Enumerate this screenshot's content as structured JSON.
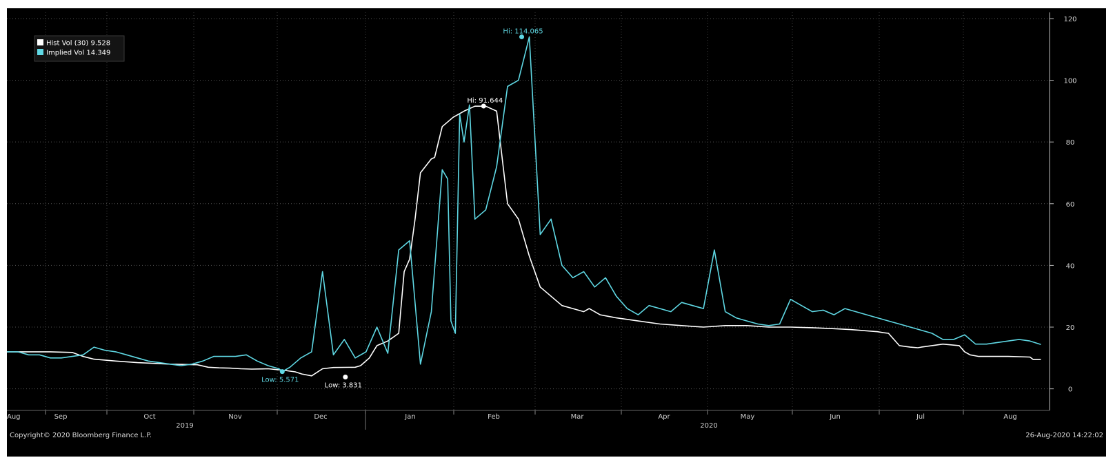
{
  "chart_data": {
    "type": "line",
    "ylim": [
      -7,
      122
    ],
    "yticks": [
      0,
      20,
      40,
      60,
      80,
      100,
      120
    ],
    "months": [
      "Aug",
      "Sep",
      "Oct",
      "Nov",
      "Dec",
      "Jan",
      "Feb",
      "Mar",
      "Apr",
      "May",
      "Jun",
      "Jul",
      "Aug"
    ],
    "years": [
      "2019",
      "2020"
    ],
    "legend": [
      {
        "label": "Hist Vol (30) 9.528",
        "color": "#ffffff"
      },
      {
        "label": "Implied Vol   14.349",
        "color": "#5fd8e4"
      }
    ],
    "series": [
      {
        "name": "Hist Vol (30)",
        "color": "#ffffff",
        "x": [
          0,
          20,
          40,
          60,
          70,
          80,
          100,
          120,
          150,
          175,
          185,
          195,
          205,
          215,
          225,
          240,
          255,
          265,
          271,
          280,
          290,
          300,
          320,
          325,
          333,
          340,
          350,
          356,
          360,
          365,
          370,
          375,
          380,
          390,
          393,
          400,
          410,
          420,
          430,
          440,
          450,
          460,
          470,
          480,
          490,
          500,
          510,
          520,
          530
        ],
        "y": [
          12,
          12,
          12,
          11.8,
          10.5,
          9.6,
          9,
          8.5,
          8,
          7.8,
          7,
          6.8,
          6.7,
          6.5,
          6.4,
          6.5,
          6,
          5.5,
          4.8,
          4.2,
          6.5,
          6.9,
          7,
          7.5,
          10,
          14,
          15.5,
          17,
          18,
          38,
          42,
          55,
          70,
          74.5,
          75,
          85,
          88,
          90,
          91.6,
          91.6,
          90,
          60,
          55,
          43,
          33,
          30,
          27,
          26,
          25
        ],
        "x2": [
          535,
          540,
          545,
          560,
          580,
          600,
          620,
          640,
          660,
          680,
          700,
          720,
          740,
          760,
          775,
          790,
          800,
          805,
          810,
          820,
          830,
          837,
          840,
          850,
          860,
          875,
          880,
          885,
          893,
          900,
          910,
          920,
          930,
          940,
          943,
          950
        ],
        "y2": [
          26,
          25,
          24,
          23,
          22,
          21,
          20.5,
          20,
          20.5,
          20.5,
          20,
          20,
          19.8,
          19.5,
          19.2,
          18.8,
          18.5,
          18.2,
          18,
          14,
          13.5,
          13.3,
          13.5,
          14,
          14.5,
          14,
          12,
          11,
          10.5,
          10.5,
          10.5,
          10.5,
          10.4,
          10.3,
          9.5,
          9.528
        ],
        "lo": {
          "x": 311,
          "y": 3.831,
          "label": "Low: 3.831"
        },
        "hi": {
          "x": 438,
          "y": 91.644,
          "label": "Hi: 91.644"
        }
      },
      {
        "name": "Implied Vol",
        "color": "#5fd8e4",
        "x": [
          0,
          10,
          20,
          30,
          40,
          50,
          60,
          70,
          80,
          90,
          100,
          110,
          120,
          130,
          140,
          150,
          160,
          170,
          180,
          190,
          200,
          210,
          220,
          230,
          240,
          250,
          253,
          260,
          270,
          280,
          290,
          300,
          310,
          320,
          330,
          340,
          350,
          360,
          370,
          380,
          390,
          400,
          405,
          408,
          412,
          416,
          420,
          425,
          430,
          440,
          450,
          460,
          470,
          480,
          490,
          500,
          510,
          520
        ],
        "y": [
          12,
          12,
          11,
          11,
          10,
          10,
          10.5,
          11,
          13.5,
          12.5,
          12,
          11,
          10,
          9,
          8.5,
          8,
          7.5,
          8,
          9,
          10.5,
          10.5,
          10.5,
          11,
          9,
          7.5,
          6.5,
          5.571,
          7,
          10,
          12,
          38,
          11,
          16,
          10,
          12,
          20,
          11.5,
          45,
          48,
          8,
          25,
          71,
          68,
          22,
          18,
          89,
          80,
          92,
          55,
          58,
          72,
          98,
          100,
          114.065,
          50,
          55,
          40,
          36
        ],
        "x2": [
          530,
          540,
          550,
          560,
          570,
          580,
          590,
          600,
          610,
          620,
          630,
          640,
          650,
          660,
          670,
          680,
          690,
          700,
          710,
          720,
          730,
          740,
          750,
          760,
          770,
          780,
          790,
          800,
          810,
          820,
          830,
          840,
          850,
          860,
          870,
          880,
          890,
          900,
          910,
          920,
          930,
          940,
          950
        ],
        "y2": [
          38,
          33,
          36,
          30,
          26,
          24,
          27,
          26,
          25,
          28,
          27,
          26,
          45,
          25,
          23,
          22,
          21,
          20.5,
          21,
          29,
          27,
          25,
          25.5,
          24,
          26,
          25,
          24,
          23,
          22,
          21,
          20,
          19,
          18,
          16,
          16,
          17.5,
          14.5,
          14.5,
          15,
          15.5,
          16,
          15.5,
          14.349
        ],
        "lo": {
          "x": 253,
          "y": 5.571,
          "label": "Low: 5.571"
        },
        "hi": {
          "x": 473,
          "y": 114.065,
          "label": "Hi: 114.065"
        }
      }
    ],
    "footer": {
      "copyright": "Copyright© 2020 Bloomberg Finance L.P.",
      "timestamp": "26-Aug-2020 14:22:02"
    }
  }
}
